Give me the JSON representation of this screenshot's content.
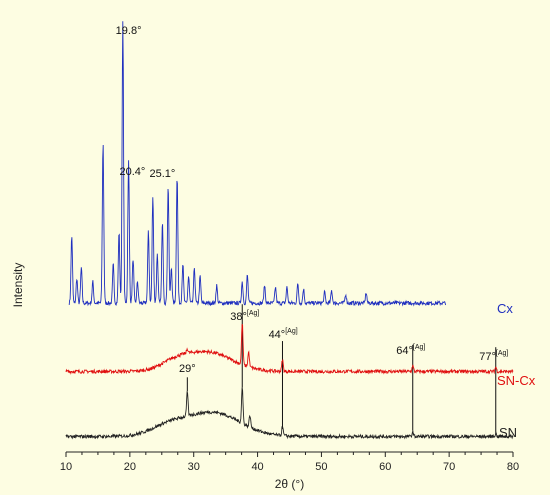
{
  "chart_data": {
    "type": "line",
    "xlabel": "2θ (°)",
    "ylabel": "Intensity",
    "xlim": [
      10,
      80
    ],
    "x_ticks": [
      "10",
      "20",
      "30",
      "40",
      "50",
      "60",
      "70",
      "80"
    ],
    "grid": false,
    "series": [
      {
        "name": "Cx",
        "color": "#1f2fbf",
        "x_range": [
          10.5,
          69.5
        ],
        "baseline": 5,
        "peaks": [
          [
            10.9,
            38
          ],
          [
            11.7,
            14
          ],
          [
            12.4,
            20
          ],
          [
            14.2,
            12
          ],
          [
            15.8,
            90
          ],
          [
            17.4,
            22
          ],
          [
            18.3,
            40
          ],
          [
            18.9,
            158
          ],
          [
            19.8,
            80
          ],
          [
            20.5,
            25
          ],
          [
            21.2,
            12
          ],
          [
            22.9,
            40
          ],
          [
            23.6,
            60
          ],
          [
            24.3,
            28
          ],
          [
            25.1,
            45
          ],
          [
            26.0,
            66
          ],
          [
            26.5,
            20
          ],
          [
            27.4,
            72
          ],
          [
            28.3,
            22
          ],
          [
            29.2,
            15
          ],
          [
            30.1,
            20
          ],
          [
            31.0,
            15
          ],
          [
            33.6,
            10
          ],
          [
            37.6,
            12
          ],
          [
            38.4,
            16
          ],
          [
            41.1,
            10
          ],
          [
            42.8,
            9
          ],
          [
            44.6,
            9
          ],
          [
            46.3,
            11
          ],
          [
            47.2,
            8
          ],
          [
            50.5,
            6
          ],
          [
            51.6,
            7
          ],
          [
            53.8,
            5
          ],
          [
            57.0,
            6
          ]
        ]
      },
      {
        "name": "SN-Cx",
        "color": "#e01010",
        "x_range": [
          10,
          80
        ],
        "baseline": 5,
        "humps": [
          [
            32,
            13,
            5.5
          ],
          [
            27,
            4,
            3
          ]
        ],
        "peaks": [
          [
            29.0,
            3
          ],
          [
            37.6,
            28
          ],
          [
            38.6,
            10
          ],
          [
            43.9,
            8
          ],
          [
            64.3,
            4
          ],
          [
            77.3,
            3
          ]
        ]
      },
      {
        "name": "SN",
        "color": "#222222",
        "x_range": [
          10,
          80
        ],
        "baseline": 3,
        "humps": [
          [
            33,
            16,
            6
          ],
          [
            26,
            6,
            4
          ]
        ],
        "peaks": [
          [
            29.0,
            16
          ],
          [
            37.6,
            24
          ],
          [
            38.8,
            8
          ],
          [
            43.9,
            6
          ],
          [
            64.3,
            3
          ],
          [
            77.3,
            2
          ]
        ]
      }
    ],
    "annotations": [
      {
        "text": "19.8°",
        "x": 19.8
      },
      {
        "text": "20.4°",
        "x": 20.4
      },
      {
        "text": "25.1°",
        "x": 25.1
      },
      {
        "text": "29°",
        "x": 29
      },
      {
        "text": "38°",
        "sup": "[Ag]",
        "x": 38
      },
      {
        "text": "44°",
        "sup": "[Ag]",
        "x": 44
      },
      {
        "text": "64°",
        "sup": "[Ag]",
        "x": 64
      },
      {
        "text": "77°",
        "sup": "[Ag]",
        "x": 77
      }
    ],
    "reference_lines_x": [
      29.0,
      37.6,
      43.9,
      64.3,
      77.3
    ]
  }
}
